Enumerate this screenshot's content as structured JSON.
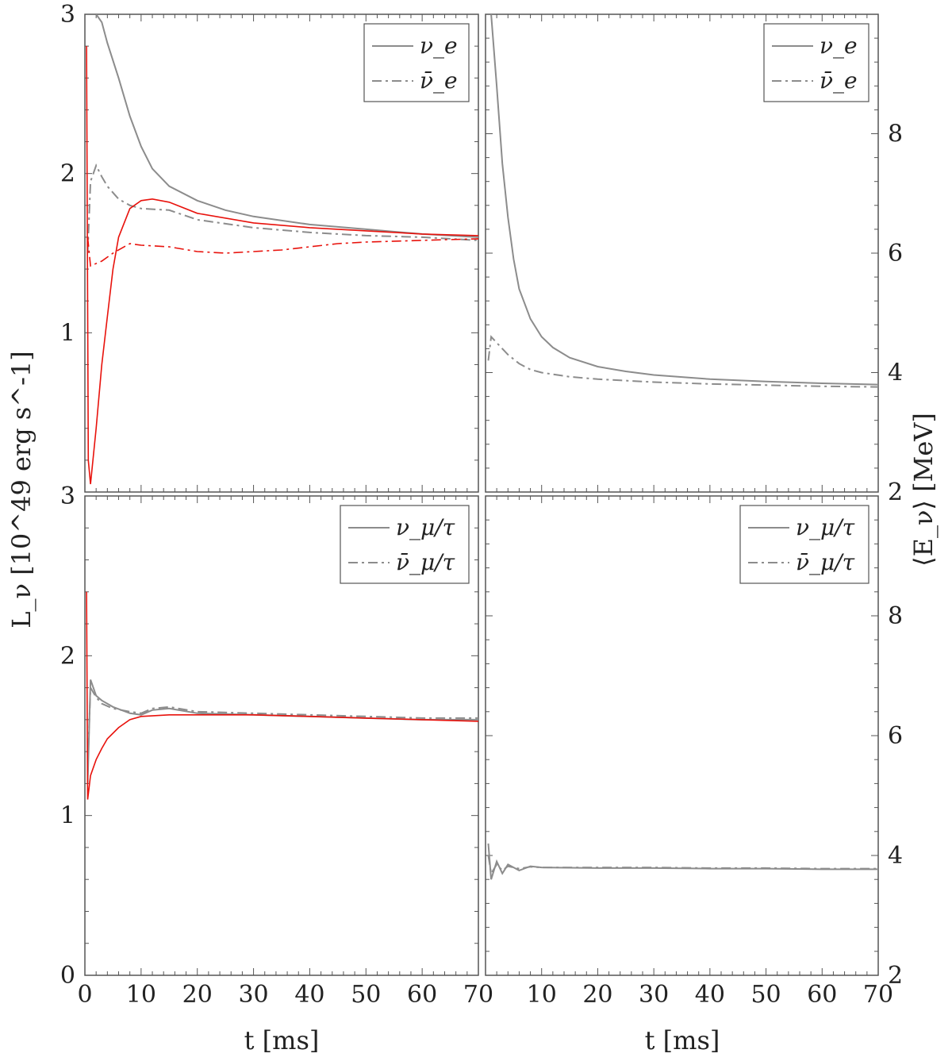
{
  "figure": {
    "y_left_label": "L_ν [10^49 erg s^-1]",
    "y_right_label": "⟨E_ν⟩ [MeV]",
    "x_label": "t [ms]"
  },
  "colors": {
    "simulation": "#8c8c8c",
    "reference": "#e8120c",
    "axes": "#555555"
  },
  "chart_data": [
    {
      "panel": "top-left",
      "type": "line",
      "quantity": "luminosity",
      "xlim": [
        0,
        70
      ],
      "ylim": [
        0,
        3
      ],
      "yticks": [
        1,
        2,
        3
      ],
      "grid": false,
      "legend": {
        "position": "top-right",
        "entries": [
          {
            "label": "ν_e",
            "style": "solid"
          },
          {
            "label": "ν̄_e",
            "style": "dash-dot"
          }
        ]
      },
      "series": [
        {
          "name": "ν_e",
          "color": "gray",
          "style": "solid",
          "x": [
            2,
            3,
            4,
            6,
            8,
            10,
            12,
            15,
            20,
            25,
            30,
            40,
            50,
            60,
            70
          ],
          "y": [
            3.0,
            2.95,
            2.82,
            2.6,
            2.36,
            2.17,
            2.03,
            1.92,
            1.83,
            1.77,
            1.73,
            1.68,
            1.65,
            1.62,
            1.6
          ]
        },
        {
          "name": "ν̄_e",
          "color": "gray",
          "style": "dash-dot",
          "x": [
            0.5,
            1,
            2,
            3,
            4,
            6,
            8,
            10,
            15,
            20,
            30,
            40,
            50,
            60,
            70
          ],
          "y": [
            1.5,
            1.95,
            2.05,
            1.98,
            1.92,
            1.84,
            1.8,
            1.78,
            1.77,
            1.71,
            1.66,
            1.63,
            1.61,
            1.6,
            1.58
          ]
        },
        {
          "name": "ν_e",
          "color": "red",
          "style": "solid",
          "x": [
            0.3,
            0.6,
            1,
            2,
            3,
            4,
            5,
            6,
            8,
            10,
            12,
            15,
            20,
            30,
            40,
            50,
            60,
            70
          ],
          "y": [
            2.8,
            0.2,
            0.05,
            0.4,
            0.8,
            1.1,
            1.4,
            1.6,
            1.78,
            1.83,
            1.84,
            1.82,
            1.75,
            1.69,
            1.66,
            1.64,
            1.62,
            1.61
          ]
        },
        {
          "name": "ν̄_e",
          "color": "red",
          "style": "dash-dot",
          "x": [
            0.5,
            1,
            3,
            5,
            8,
            10,
            15,
            20,
            25,
            30,
            35,
            40,
            45,
            50,
            60,
            70
          ],
          "y": [
            1.6,
            1.42,
            1.45,
            1.5,
            1.56,
            1.55,
            1.54,
            1.51,
            1.5,
            1.51,
            1.52,
            1.54,
            1.56,
            1.57,
            1.58,
            1.59
          ]
        }
      ]
    },
    {
      "panel": "top-right",
      "type": "line",
      "quantity": "mean energy",
      "xlim": [
        0,
        70
      ],
      "ylim": [
        2,
        10
      ],
      "yticks": [
        2,
        4,
        6,
        8
      ],
      "grid": false,
      "legend": {
        "position": "top-right",
        "entries": [
          {
            "label": "ν_e",
            "style": "solid"
          },
          {
            "label": "ν̄_e",
            "style": "dash-dot"
          }
        ]
      },
      "series": [
        {
          "name": "ν_e",
          "color": "gray",
          "style": "solid",
          "x": [
            1,
            2,
            3,
            4,
            5,
            6,
            8,
            10,
            12,
            15,
            20,
            25,
            30,
            40,
            50,
            60,
            70
          ],
          "y": [
            10.0,
            8.8,
            7.5,
            6.6,
            5.9,
            5.4,
            4.9,
            4.6,
            4.42,
            4.25,
            4.1,
            4.02,
            3.96,
            3.89,
            3.85,
            3.82,
            3.8
          ]
        },
        {
          "name": "ν̄_e",
          "color": "gray",
          "style": "dash-dot",
          "x": [
            0.5,
            1,
            2,
            3,
            4,
            6,
            8,
            10,
            15,
            20,
            30,
            40,
            50,
            60,
            70
          ],
          "y": [
            4.2,
            4.6,
            4.5,
            4.4,
            4.3,
            4.15,
            4.05,
            4.0,
            3.93,
            3.89,
            3.84,
            3.81,
            3.79,
            3.77,
            3.76
          ]
        }
      ]
    },
    {
      "panel": "bottom-left",
      "type": "line",
      "quantity": "luminosity",
      "xlim": [
        0,
        70
      ],
      "ylim": [
        0,
        3
      ],
      "yticks": [
        0,
        1,
        2,
        3
      ],
      "grid": false,
      "legend": {
        "position": "top-right",
        "entries": [
          {
            "label": "ν_μ/τ",
            "style": "solid"
          },
          {
            "label": "ν̄_μ/τ",
            "style": "dash-dot"
          }
        ]
      },
      "series": [
        {
          "name": "ν_μ/τ",
          "color": "gray",
          "style": "solid",
          "x": [
            0.5,
            1,
            2,
            3,
            5,
            8,
            10,
            12,
            15,
            20,
            30,
            40,
            50,
            60,
            70
          ],
          "y": [
            1.2,
            1.85,
            1.75,
            1.72,
            1.68,
            1.64,
            1.63,
            1.66,
            1.67,
            1.64,
            1.63,
            1.62,
            1.61,
            1.6,
            1.6
          ]
        },
        {
          "name": "ν̄_μ/τ",
          "color": "gray",
          "style": "dash-dot",
          "x": [
            0.5,
            1,
            2,
            3,
            5,
            8,
            10,
            12,
            15,
            20,
            30,
            40,
            50,
            60,
            70
          ],
          "y": [
            1.3,
            1.8,
            1.74,
            1.7,
            1.67,
            1.65,
            1.64,
            1.67,
            1.68,
            1.65,
            1.64,
            1.63,
            1.62,
            1.61,
            1.61
          ]
        },
        {
          "name": "ν_μ/τ",
          "color": "red",
          "style": "solid",
          "x": [
            0.3,
            0.5,
            1,
            2,
            3,
            4,
            6,
            8,
            10,
            15,
            20,
            30,
            40,
            50,
            60,
            70
          ],
          "y": [
            2.4,
            1.1,
            1.25,
            1.35,
            1.42,
            1.48,
            1.55,
            1.6,
            1.62,
            1.63,
            1.63,
            1.63,
            1.62,
            1.61,
            1.6,
            1.59
          ]
        }
      ]
    },
    {
      "panel": "bottom-right",
      "type": "line",
      "quantity": "mean energy",
      "xlim": [
        0,
        70
      ],
      "ylim": [
        2,
        10
      ],
      "yticks": [
        2,
        4,
        6,
        8
      ],
      "grid": false,
      "legend": {
        "position": "top-right",
        "entries": [
          {
            "label": "ν_μ/τ",
            "style": "solid"
          },
          {
            "label": "ν̄_μ/τ",
            "style": "dash-dot"
          }
        ]
      },
      "series": [
        {
          "name": "ν_μ/τ",
          "color": "gray",
          "style": "solid",
          "x": [
            0.5,
            1,
            2,
            3,
            4,
            6,
            8,
            10,
            20,
            30,
            40,
            50,
            60,
            70
          ],
          "y": [
            4.2,
            3.6,
            3.9,
            3.7,
            3.85,
            3.75,
            3.82,
            3.8,
            3.79,
            3.79,
            3.78,
            3.78,
            3.77,
            3.77
          ]
        },
        {
          "name": "ν̄_μ/τ",
          "color": "gray",
          "style": "dash-dot",
          "x": [
            0.5,
            1,
            2,
            3,
            4,
            6,
            8,
            10,
            20,
            30,
            40,
            50,
            60,
            70
          ],
          "y": [
            4.0,
            3.7,
            3.85,
            3.75,
            3.82,
            3.78,
            3.81,
            3.8,
            3.8,
            3.8,
            3.79,
            3.79,
            3.78,
            3.78
          ]
        }
      ]
    }
  ],
  "xticks": [
    0,
    10,
    20,
    30,
    40,
    50,
    60,
    70
  ]
}
